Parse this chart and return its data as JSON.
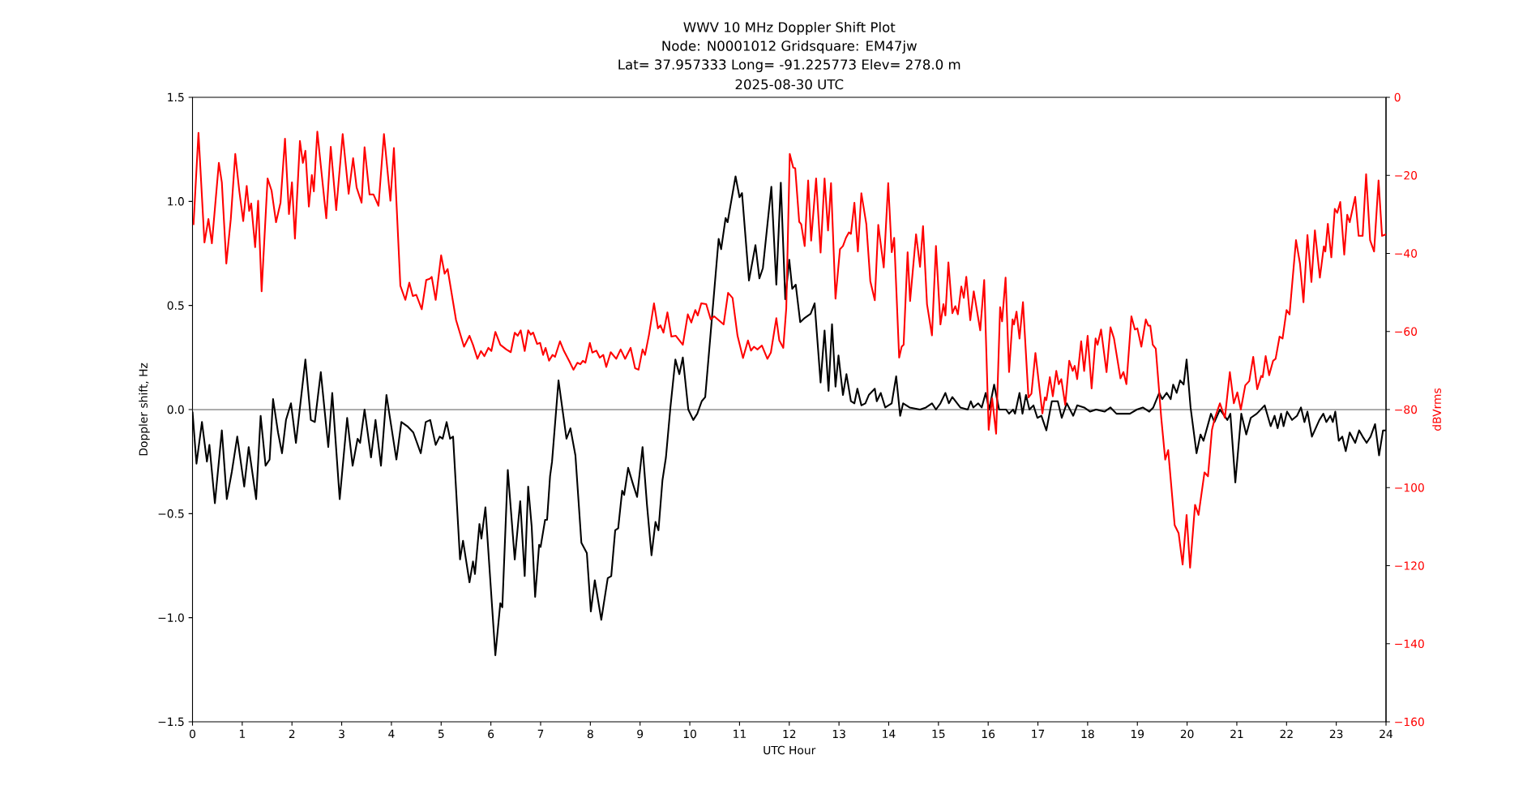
{
  "chart_data": {
    "type": "line",
    "title": "WWV 10 MHz Doppler Shift Plot",
    "subtitle": "Node:  N0001012     Gridsquare:  EM47jw",
    "annotations": [
      "Lat= 37.957333    Long= -91.225773    Elev= 278.0 m",
      "2025-08-30  UTC"
    ],
    "xlabel": "UTC Hour",
    "ylabel": "Doppler shift, Hz",
    "y2label": "dBVrms",
    "xlim": [
      0,
      24
    ],
    "xticks": [
      0,
      1,
      2,
      3,
      4,
      5,
      6,
      7,
      8,
      9,
      10,
      11,
      12,
      13,
      14,
      15,
      16,
      17,
      18,
      19,
      20,
      21,
      22,
      23,
      24
    ],
    "ylim": [
      -1.5,
      1.5
    ],
    "yticks": [
      {
        "value": -1.5,
        "label": "−1.5"
      },
      {
        "value": -1.0,
        "label": "−1.0"
      },
      {
        "value": -0.5,
        "label": "−0.5"
      },
      {
        "value": 0,
        "label": "0.0"
      },
      {
        "value": 0.5,
        "label": "0.5"
      },
      {
        "value": 1.0,
        "label": "1.0"
      },
      {
        "value": 1.5,
        "label": "1.5"
      }
    ],
    "y2lim": [
      -160,
      0
    ],
    "y2ticks": [
      {
        "value": -160,
        "label": "−160"
      },
      {
        "value": -140,
        "label": "−140"
      },
      {
        "value": -120,
        "label": "−120"
      },
      {
        "value": -100,
        "label": "−100"
      },
      {
        "value": -80,
        "label": "−80"
      },
      {
        "value": -60,
        "label": "−60"
      },
      {
        "value": -40,
        "label": "−40"
      },
      {
        "value": -20,
        "label": "−20"
      },
      0
    ],
    "line_style": "solid",
    "ref_lines": [
      {
        "axis": "y",
        "value": 0,
        "color": "#808080"
      }
    ],
    "series": [
      {
        "color": "#000000",
        "x": [
          0,
          0.08,
          0.19,
          0.29,
          0.34,
          0.45,
          0.59,
          0.69,
          0.79,
          0.9,
          1.04,
          1.13,
          1.28,
          1.37,
          1.47,
          1.55,
          1.62,
          1.72,
          1.8,
          1.88,
          1.98,
          2.08,
          2.27,
          2.38,
          2.46,
          2.58,
          2.73,
          2.81,
          2.96,
          3.11,
          3.22,
          3.32,
          3.37,
          3.46,
          3.59,
          3.68,
          3.79,
          3.9,
          3.99,
          4.1,
          4.2,
          4.32,
          4.44,
          4.59,
          4.69,
          4.78,
          4.89,
          4.97,
          5.03,
          5.11,
          5.18,
          5.24,
          5.38,
          5.44,
          5.57,
          5.64,
          5.68,
          5.77,
          5.81,
          5.89,
          6.09,
          6.19,
          6.23,
          6.34,
          6.48,
          6.59,
          6.68,
          6.75,
          6.82,
          6.89,
          6.97,
          7.0,
          7.09,
          7.13,
          7.19,
          7.23,
          7.36,
          7.52,
          7.6,
          7.7,
          7.82,
          7.93,
          8.01,
          8.09,
          8.22,
          8.35,
          8.42,
          8.5,
          8.56,
          8.64,
          8.68,
          8.76,
          8.86,
          8.94,
          9.05,
          9.14,
          9.23,
          9.31,
          9.37,
          9.45,
          9.52,
          9.61,
          9.71,
          9.79,
          9.86,
          9.97,
          10.07,
          10.15,
          10.24,
          10.31,
          10.47,
          10.58,
          10.63,
          10.72,
          10.76,
          10.84,
          10.92,
          11.0,
          11.05,
          11.19,
          11.32,
          11.4,
          11.47,
          11.64,
          11.74,
          11.83,
          11.92,
          12.0,
          12.06,
          12.13,
          12.22,
          12.31,
          12.43,
          12.51,
          12.63,
          12.71,
          12.79,
          12.86,
          12.93,
          12.99,
          13.08,
          13.15,
          13.24,
          13.31,
          13.37,
          13.45,
          13.53,
          13.6,
          13.72,
          13.76,
          13.84,
          13.93,
          14.06,
          14.15,
          14.23,
          14.29,
          14.42,
          14.63,
          14.75,
          14.87,
          14.95,
          15.04,
          15.14,
          15.21,
          15.28,
          15.44,
          15.59,
          15.65,
          15.7,
          15.8,
          15.87,
          15.95,
          16.02,
          16.12,
          16.22,
          16.36,
          16.42,
          16.5,
          16.54,
          16.63,
          16.69,
          16.76,
          16.83,
          16.91,
          16.99,
          17.07,
          17.17,
          17.28,
          17.4,
          17.48,
          17.58,
          17.71,
          17.79,
          17.93,
          18.05,
          18.17,
          18.34,
          18.46,
          18.58,
          18.71,
          18.85,
          18.99,
          19.11,
          19.24,
          19.32,
          19.44,
          19.5,
          19.59,
          19.67,
          19.72,
          19.79,
          19.86,
          19.93,
          19.99,
          20.07,
          20.19,
          20.27,
          20.33,
          20.48,
          20.55,
          20.66,
          20.81,
          20.87,
          20.97,
          21.09,
          21.19,
          21.28,
          21.4,
          21.48,
          21.56,
          21.68,
          21.76,
          21.82,
          21.89,
          21.94,
          22.01,
          22.11,
          22.21,
          22.29,
          22.36,
          22.42,
          22.51,
          22.66,
          22.74,
          22.8,
          22.88,
          22.93,
          22.98,
          23.05,
          23.12,
          23.19,
          23.27,
          23.38,
          23.46,
          23.53,
          23.61,
          23.69,
          23.78,
          23.86,
          23.94,
          24.0
        ],
        "values": [
          -0.01,
          -0.26,
          -0.06,
          -0.25,
          -0.17,
          -0.45,
          -0.1,
          -0.43,
          -0.3,
          -0.13,
          -0.37,
          -0.18,
          -0.43,
          -0.03,
          -0.27,
          -0.24,
          0.05,
          -0.11,
          -0.21,
          -0.05,
          0.03,
          -0.16,
          0.24,
          -0.05,
          -0.06,
          0.18,
          -0.18,
          0.08,
          -0.43,
          -0.04,
          -0.27,
          -0.14,
          -0.16,
          0.0,
          -0.23,
          -0.05,
          -0.27,
          0.07,
          -0.07,
          -0.24,
          -0.06,
          -0.08,
          -0.11,
          -0.21,
          -0.06,
          -0.05,
          -0.17,
          -0.13,
          -0.14,
          -0.06,
          -0.14,
          -0.13,
          -0.72,
          -0.63,
          -0.83,
          -0.73,
          -0.79,
          -0.55,
          -0.62,
          -0.47,
          -1.18,
          -0.93,
          -0.95,
          -0.29,
          -0.72,
          -0.44,
          -0.8,
          -0.37,
          -0.56,
          -0.9,
          -0.65,
          -0.66,
          -0.53,
          -0.53,
          -0.32,
          -0.25,
          0.14,
          -0.14,
          -0.09,
          -0.22,
          -0.64,
          -0.69,
          -0.97,
          -0.82,
          -1.01,
          -0.81,
          -0.8,
          -0.58,
          -0.57,
          -0.39,
          -0.41,
          -0.28,
          -0.36,
          -0.42,
          -0.18,
          -0.46,
          -0.7,
          -0.54,
          -0.58,
          -0.34,
          -0.23,
          0.01,
          0.24,
          0.17,
          0.25,
          0.0,
          -0.05,
          -0.02,
          0.04,
          0.06,
          0.51,
          0.82,
          0.77,
          0.92,
          0.9,
          1.01,
          1.12,
          1.02,
          1.04,
          0.62,
          0.79,
          0.63,
          0.68,
          1.07,
          0.6,
          1.09,
          0.53,
          0.72,
          0.58,
          0.6,
          0.42,
          0.44,
          0.46,
          0.51,
          0.13,
          0.38,
          0.09,
          0.41,
          0.11,
          0.26,
          0.07,
          0.17,
          0.04,
          0.03,
          0.1,
          0.02,
          0.03,
          0.07,
          0.1,
          0.04,
          0.08,
          0.01,
          0.03,
          0.16,
          -0.03,
          0.03,
          0.01,
          0.0,
          0.01,
          0.03,
          0.0,
          0.03,
          0.08,
          0.03,
          0.06,
          0.01,
          0.0,
          0.04,
          0.01,
          0.03,
          0.01,
          0.08,
          0.0,
          0.12,
          0.0,
          0.0,
          -0.02,
          0.0,
          -0.02,
          0.08,
          -0.02,
          0.07,
          0.0,
          0.02,
          -0.04,
          -0.03,
          -0.1,
          0.04,
          0.04,
          -0.04,
          0.03,
          -0.03,
          0.02,
          0.01,
          -0.01,
          0.0,
          -0.01,
          0.01,
          -0.02,
          -0.02,
          -0.02,
          0.0,
          0.01,
          -0.01,
          0.01,
          0.08,
          0.05,
          0.08,
          0.05,
          0.12,
          0.08,
          0.14,
          0.12,
          0.24,
          0.01,
          -0.21,
          -0.12,
          -0.15,
          -0.02,
          -0.06,
          0.0,
          -0.05,
          -0.02,
          -0.35,
          -0.02,
          -0.12,
          -0.04,
          -0.02,
          0.0,
          0.02,
          -0.08,
          -0.03,
          -0.09,
          -0.02,
          -0.08,
          -0.01,
          -0.05,
          -0.03,
          0.01,
          -0.06,
          -0.01,
          -0.13,
          -0.05,
          -0.02,
          -0.06,
          -0.03,
          -0.06,
          -0.01,
          -0.15,
          -0.13,
          -0.2,
          -0.11,
          -0.16,
          -0.1,
          -0.13,
          -0.16,
          -0.13,
          -0.07,
          -0.22,
          -0.1,
          -0.1
        ]
      },
      {
        "color": "#ff0000",
        "axis": "y2",
        "x": [
          0.02,
          0.12,
          0.24,
          0.32,
          0.39,
          0.53,
          0.59,
          0.68,
          0.77,
          0.86,
          0.94,
          1.02,
          1.09,
          1.14,
          1.18,
          1.26,
          1.32,
          1.39,
          1.51,
          1.59,
          1.68,
          1.77,
          1.86,
          1.94,
          2.0,
          2.06,
          2.16,
          2.22,
          2.27,
          2.34,
          2.4,
          2.44,
          2.51,
          2.59,
          2.69,
          2.78,
          2.89,
          3.02,
          3.14,
          3.23,
          3.3,
          3.4,
          3.46,
          3.56,
          3.64,
          3.74,
          3.85,
          3.98,
          4.05,
          4.18,
          4.28,
          4.36,
          4.43,
          4.5,
          4.61,
          4.7,
          4.77,
          4.81,
          4.89,
          5.0,
          5.07,
          5.13,
          5.3,
          5.46,
          5.57,
          5.64,
          5.73,
          5.8,
          5.87,
          5.95,
          6.01,
          6.09,
          6.19,
          6.31,
          6.4,
          6.48,
          6.54,
          6.6,
          6.68,
          6.75,
          6.8,
          6.85,
          6.93,
          6.99,
          7.05,
          7.1,
          7.17,
          7.24,
          7.29,
          7.39,
          7.47,
          7.58,
          7.66,
          7.74,
          7.8,
          7.85,
          7.9,
          7.99,
          8.04,
          8.12,
          8.19,
          8.26,
          8.32,
          8.41,
          8.52,
          8.61,
          8.7,
          8.81,
          8.9,
          8.97,
          9.05,
          9.1,
          9.18,
          9.28,
          9.36,
          9.41,
          9.47,
          9.55,
          9.63,
          9.72,
          9.86,
          9.96,
          10.03,
          10.11,
          10.16,
          10.23,
          10.33,
          10.42,
          10.49,
          10.68,
          10.77,
          10.86,
          10.96,
          11.07,
          11.17,
          11.23,
          11.29,
          11.36,
          11.45,
          11.56,
          11.63,
          11.74,
          11.8,
          11.88,
          11.94,
          12.01,
          12.08,
          12.12,
          12.2,
          12.24,
          12.31,
          12.38,
          12.44,
          12.54,
          12.63,
          12.71,
          12.78,
          12.84,
          12.93,
          13.02,
          13.08,
          13.14,
          13.2,
          13.24,
          13.31,
          13.38,
          13.45,
          13.55,
          13.63,
          13.72,
          13.79,
          13.9,
          13.99,
          14.06,
          14.11,
          14.21,
          14.26,
          14.3,
          14.38,
          14.43,
          14.55,
          14.63,
          14.69,
          14.77,
          14.87,
          14.95,
          15.04,
          15.1,
          15.14,
          15.2,
          15.28,
          15.34,
          15.39,
          15.46,
          15.51,
          15.56,
          15.64,
          15.71,
          15.84,
          15.92,
          16.01,
          16.08,
          16.16,
          16.24,
          16.28,
          16.35,
          16.42,
          16.49,
          16.52,
          16.57,
          16.63,
          16.7,
          16.81,
          16.87,
          16.95,
          17.09,
          17.14,
          17.17,
          17.24,
          17.3,
          17.37,
          17.42,
          17.47,
          17.55,
          17.63,
          17.7,
          17.74,
          17.79,
          17.87,
          17.93,
          18.0,
          18.08,
          18.16,
          18.2,
          18.27,
          18.38,
          18.46,
          18.53,
          18.66,
          18.72,
          18.78,
          18.88,
          18.95,
          19.0,
          19.08,
          19.17,
          19.22,
          19.26,
          19.31,
          19.37,
          19.48,
          19.56,
          19.62,
          19.75,
          19.83,
          19.91,
          19.99,
          20.06,
          20.16,
          20.23,
          20.35,
          20.42,
          20.5,
          20.56,
          20.66,
          20.76,
          20.86,
          20.94,
          21.01,
          21.08,
          21.17,
          21.25,
          21.33,
          21.41,
          21.49,
          21.52,
          21.58,
          21.65,
          21.73,
          21.78,
          21.86,
          21.92,
          22.0,
          22.06,
          22.19,
          22.27,
          22.34,
          22.42,
          22.5,
          22.57,
          22.67,
          22.75,
          22.78,
          22.83,
          22.9,
          22.97,
          23.02,
          23.08,
          23.16,
          23.22,
          23.27,
          23.38,
          23.45,
          23.53,
          23.6,
          23.68,
          23.76,
          23.85,
          23.92,
          24.0
        ],
        "values": [
          -32.7,
          -9.1,
          -37.2,
          -31.2,
          -37.4,
          -16.8,
          -21.8,
          -42.6,
          -31.2,
          -14.5,
          -23.9,
          -31.7,
          -22.7,
          -29.1,
          -27.2,
          -38.4,
          -26.5,
          -49.7,
          -20.8,
          -23.9,
          -32.0,
          -27.0,
          -10.6,
          -29.9,
          -21.8,
          -36.2,
          -11.2,
          -16.8,
          -13.7,
          -28.0,
          -19.9,
          -24.1,
          -8.8,
          -18.7,
          -31.0,
          -12.7,
          -28.9,
          -9.4,
          -24.7,
          -15.6,
          -23.1,
          -27.0,
          -12.8,
          -24.9,
          -24.9,
          -27.8,
          -9.4,
          -26.5,
          -13.0,
          -48.3,
          -51.9,
          -47.5,
          -50.9,
          -50.6,
          -54.3,
          -46.8,
          -46.5,
          -46.0,
          -51.9,
          -40.5,
          -45.2,
          -44.0,
          -57.1,
          -63.9,
          -61.1,
          -63.4,
          -67.0,
          -65.0,
          -66.3,
          -64.2,
          -65.0,
          -60.1,
          -63.4,
          -64.6,
          -65.3,
          -60.3,
          -61.1,
          -59.7,
          -65.0,
          -59.7,
          -60.8,
          -60.3,
          -63.2,
          -62.9,
          -66.0,
          -64.2,
          -67.5,
          -66.0,
          -66.5,
          -62.5,
          -65.0,
          -67.7,
          -69.8,
          -68.0,
          -68.4,
          -67.5,
          -68.0,
          -62.9,
          -65.4,
          -64.9,
          -66.7,
          -66.0,
          -69.1,
          -65.3,
          -67.0,
          -64.6,
          -67.0,
          -64.2,
          -69.4,
          -69.8,
          -64.6,
          -66.0,
          -60.8,
          -52.8,
          -59.2,
          -58.4,
          -60.3,
          -55.1,
          -61.3,
          -61.1,
          -63.4,
          -55.6,
          -57.7,
          -54.5,
          -55.9,
          -52.8,
          -53.0,
          -56.9,
          -56.1,
          -58.2,
          -50.1,
          -51.4,
          -61.1,
          -66.8,
          -62.3,
          -64.9,
          -63.9,
          -64.6,
          -63.6,
          -67.0,
          -65.4,
          -56.6,
          -62.3,
          -64.2,
          -54.0,
          -14.5,
          -18.0,
          -18.2,
          -31.9,
          -32.5,
          -38.1,
          -21.3,
          -36.7,
          -20.8,
          -39.8,
          -20.8,
          -34.1,
          -22.0,
          -51.6,
          -38.9,
          -38.1,
          -36.0,
          -34.6,
          -35.0,
          -27.0,
          -39.5,
          -24.6,
          -32.5,
          -47.1,
          -52.0,
          -32.7,
          -43.6,
          -22.0,
          -39.7,
          -36.0,
          -66.7,
          -63.9,
          -63.4,
          -39.7,
          -52.2,
          -35.1,
          -43.4,
          -33.0,
          -53.0,
          -61.0,
          -38.1,
          -58.2,
          -53.0,
          -55.9,
          -42.3,
          -55.3,
          -53.5,
          -55.6,
          -48.5,
          -51.4,
          -46.0,
          -57.1,
          -49.7,
          -59.7,
          -46.8,
          -85.2,
          -77.1,
          -86.2,
          -53.8,
          -57.4,
          -46.2,
          -70.4,
          -56.9,
          -58.2,
          -54.9,
          -61.8,
          -52.5,
          -76.9,
          -75.9,
          -65.5,
          -81.0,
          -76.9,
          -77.6,
          -71.7,
          -76.6,
          -70.1,
          -73.5,
          -72.2,
          -78.8,
          -67.5,
          -70.1,
          -68.8,
          -72.2,
          -62.5,
          -70.1,
          -61.1,
          -74.6,
          -61.8,
          -63.4,
          -59.5,
          -70.4,
          -58.9,
          -61.8,
          -72.0,
          -70.4,
          -73.5,
          -56.1,
          -59.5,
          -59.2,
          -63.9,
          -56.9,
          -58.5,
          -58.5,
          -63.4,
          -64.4,
          -82.1,
          -92.8,
          -90.4,
          -109.6,
          -111.7,
          -119.7,
          -107.0,
          -120.5,
          -104.4,
          -107.0,
          -96.1,
          -97.1,
          -85.2,
          -82.1,
          -78.4,
          -82.1,
          -70.4,
          -78.4,
          -75.6,
          -80.0,
          -73.8,
          -72.7,
          -66.5,
          -74.8,
          -71.4,
          -71.7,
          -66.3,
          -71.2,
          -67.5,
          -67.0,
          -61.3,
          -61.8,
          -54.5,
          -55.6,
          -36.6,
          -42.6,
          -52.5,
          -35.3,
          -47.3,
          -34.1,
          -46.2,
          -38.2,
          -39.5,
          -32.4,
          -41.0,
          -28.6,
          -29.6,
          -26.8,
          -40.3,
          -30.1,
          -32.0,
          -25.5,
          -35.5,
          -35.5,
          -19.7,
          -36.6,
          -39.5,
          -21.3,
          -35.5,
          -35.1
        ]
      }
    ]
  }
}
